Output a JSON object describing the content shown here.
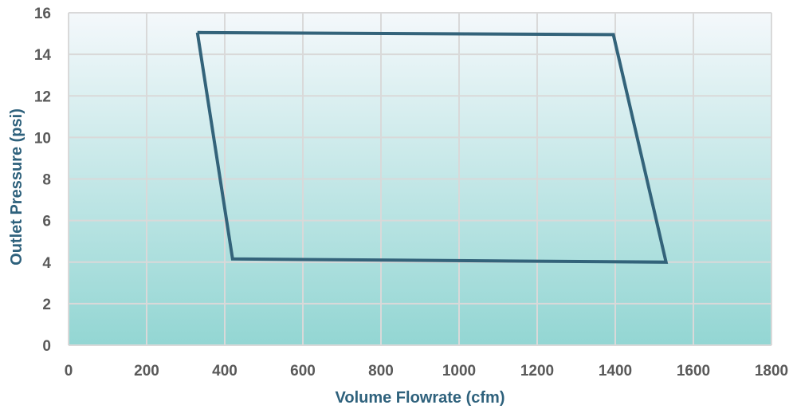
{
  "chart_data": {
    "type": "line",
    "title": "",
    "xlabel": "Volume Flowrate (cfm)",
    "ylabel": "Outlet Pressure (psi)",
    "xlim": [
      0,
      1800
    ],
    "ylim": [
      0,
      16
    ],
    "xticks": [
      "0",
      "200",
      "400",
      "600",
      "800",
      "1000",
      "1200",
      "1400",
      "1600",
      "1800"
    ],
    "yticks": [
      "0",
      "2",
      "4",
      "6",
      "8",
      "10",
      "12",
      "14",
      "16"
    ],
    "grid": true,
    "legend": "none",
    "series": [
      {
        "x": [
          330,
          1395,
          1530,
          420,
          330
        ],
        "y": [
          15.05,
          14.95,
          4.0,
          4.15,
          15.05
        ]
      }
    ],
    "colors": {
      "line": "#33637a",
      "grid": "#d9d9d9",
      "plot_bg_top": "#f4f8fb",
      "plot_bg_bottom": "#93d6d3",
      "tick_text": "#595959",
      "axis_title": "#2e617c"
    }
  }
}
